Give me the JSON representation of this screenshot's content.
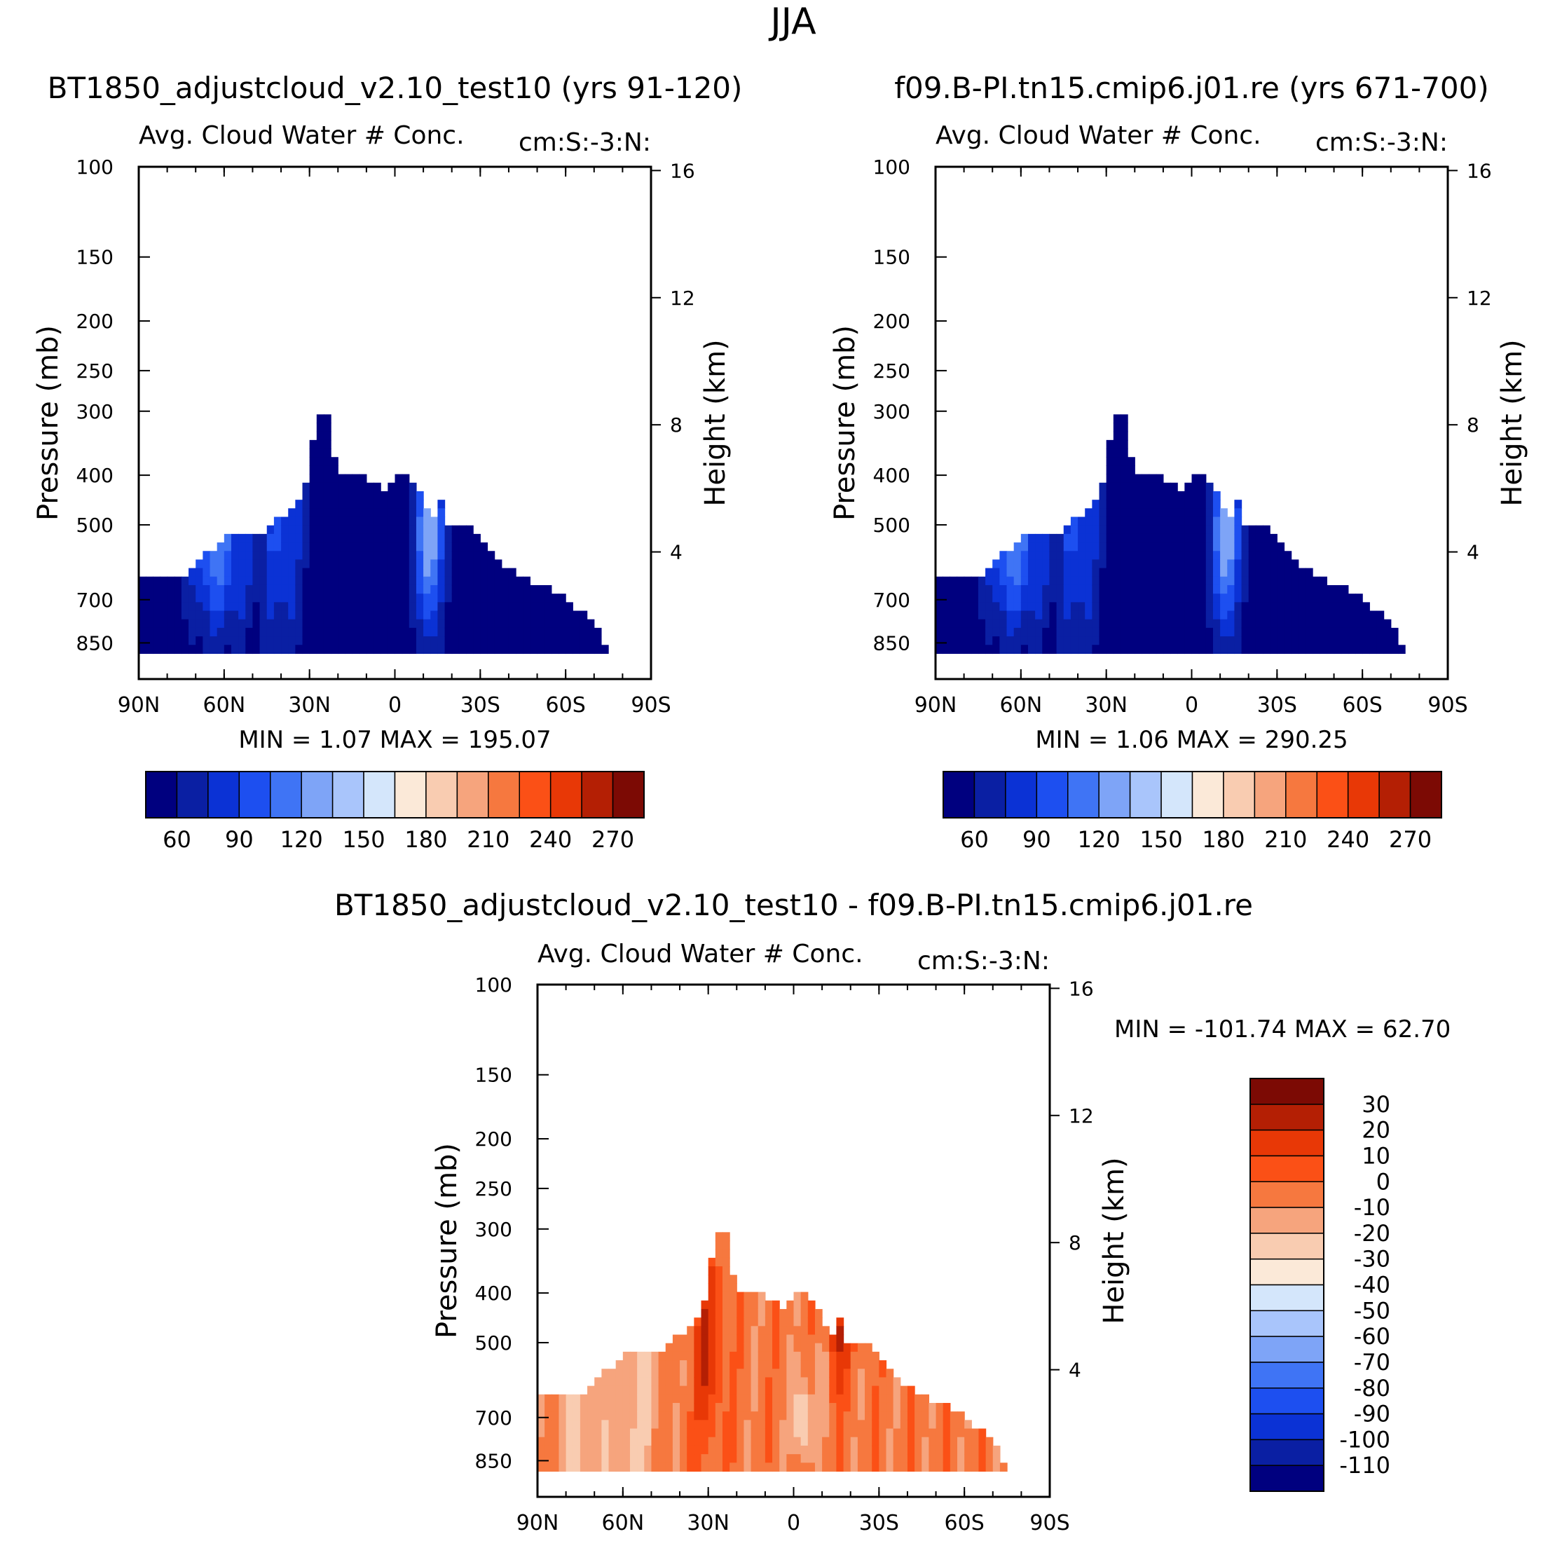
{
  "page_title": "JJA",
  "palettes": {
    "blue_red": [
      "#00007f",
      "#0a1fa3",
      "#0b32d5",
      "#1d4ff0",
      "#3f74f5",
      "#7ea4f7",
      "#a9c5fb",
      "#d4e6fb",
      "#fbe9d8",
      "#f9ccb1",
      "#f6a47d",
      "#f6783f",
      "#fb5016",
      "#e83806",
      "#b41f04",
      "#7c0a04"
    ],
    "diff": [
      "#00007f",
      "#0a1fa3",
      "#0b32d5",
      "#1d4ff0",
      "#3f74f5",
      "#7ea4f7",
      "#a9c5fb",
      "#d4e6fb",
      "#fbe9d8",
      "#f9ccb1",
      "#f6a47d",
      "#f6783f",
      "#fb5016",
      "#e83806",
      "#b41f04",
      "#7c0a04"
    ]
  },
  "chart_data": [
    {
      "id": "case",
      "type": "heatmap",
      "title": "BT1850_adjustcloud_v2.10_test10 (yrs 91-120)",
      "subtitle_left": "Avg. Cloud Water # Conc.",
      "subtitle_right": "cm:S:-3:N:",
      "xlabel": "",
      "ylabel": "Pressure (mb)",
      "ylabel_right": "Height (km)",
      "x_ticks": [
        "90N",
        "60N",
        "30N",
        "0",
        "30S",
        "60S",
        "90S"
      ],
      "y_ticks": [
        "100",
        "150",
        "200",
        "250",
        "300",
        "400",
        "500",
        "700",
        "850"
      ],
      "y_ticks_right": [
        "16",
        "12",
        "8",
        "4"
      ],
      "min_label": "MIN =    1.07   MAX =  195.07",
      "min": 1.07,
      "max": 195.07,
      "colorbar_labels": [
        "60",
        "90",
        "120",
        "150",
        "180",
        "210",
        "240",
        "270"
      ],
      "palette": "blue_red"
    },
    {
      "id": "control",
      "type": "heatmap",
      "title": "f09.B-PI.tn15.cmip6.j01.re (yrs 671-700)",
      "subtitle_left": "Avg. Cloud Water # Conc.",
      "subtitle_right": "cm:S:-3:N:",
      "xlabel": "",
      "ylabel": "Pressure (mb)",
      "ylabel_right": "Height (km)",
      "x_ticks": [
        "90N",
        "60N",
        "30N",
        "0",
        "30S",
        "60S",
        "90S"
      ],
      "y_ticks": [
        "100",
        "150",
        "200",
        "250",
        "300",
        "400",
        "500",
        "700",
        "850"
      ],
      "y_ticks_right": [
        "16",
        "12",
        "8",
        "4"
      ],
      "min_label": "MIN =    1.06   MAX =  290.25",
      "min": 1.06,
      "max": 290.25,
      "colorbar_labels": [
        "60",
        "90",
        "120",
        "150",
        "180",
        "210",
        "240",
        "270"
      ],
      "palette": "blue_red"
    },
    {
      "id": "difference",
      "type": "heatmap",
      "title": "BT1850_adjustcloud_v2.10_test10 - f09.B-PI.tn15.cmip6.j01.re",
      "subtitle_left": "Avg. Cloud Water # Conc.",
      "subtitle_right": "cm:S:-3:N:",
      "xlabel": "",
      "ylabel": "Pressure (mb)",
      "ylabel_right": "Height (km)",
      "x_ticks": [
        "90N",
        "60N",
        "30N",
        "0",
        "30S",
        "60S",
        "90S"
      ],
      "y_ticks": [
        "100",
        "150",
        "200",
        "250",
        "300",
        "400",
        "500",
        "700",
        "850"
      ],
      "y_ticks_right": [
        "16",
        "12",
        "8",
        "4"
      ],
      "min_label": "MIN = -101.74   MAX =   62.70",
      "min": -101.74,
      "max": 62.7,
      "colorbar_labels": [
        "30",
        "20",
        "10",
        "0",
        "-10",
        "-20",
        "-30",
        "-40",
        "-50",
        "-60",
        "-70",
        "-80",
        "-90",
        "-100",
        "-110"
      ],
      "palette": "diff"
    }
  ]
}
